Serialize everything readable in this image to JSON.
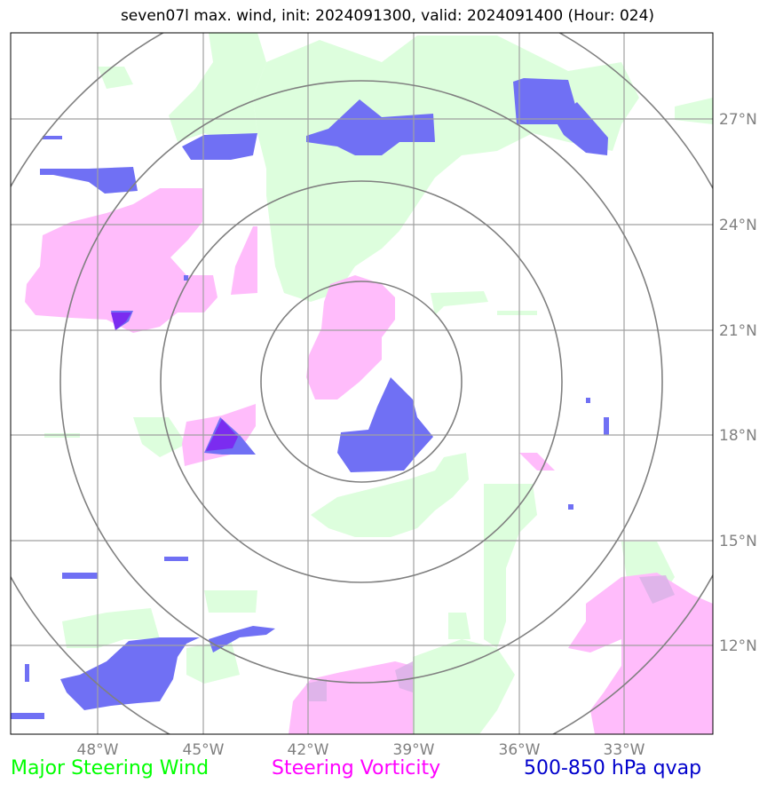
{
  "title": "seven07l max. wind, init: 2024091300, valid: 2024091400 (Hour: 024)",
  "x_ticks": [
    "48°W",
    "45°W",
    "42°W",
    "39°W",
    "36°W",
    "33°W"
  ],
  "y_ticks": [
    "27°N",
    "24°N",
    "21°N",
    "18°N",
    "15°N",
    "12°N"
  ],
  "legend": {
    "wind": "Major Steering Wind",
    "vorticity": "Steering Vorticity",
    "qvap": "500-850 hPa qvap"
  },
  "colors": {
    "wind": "#00ff00",
    "vorticity": "#ff00ff",
    "qvap": "#0000cc",
    "wind_fill": "#ddfedd",
    "vorticity_fill": "#ffbcfb",
    "qvap_fill": "#7070f4"
  }
}
